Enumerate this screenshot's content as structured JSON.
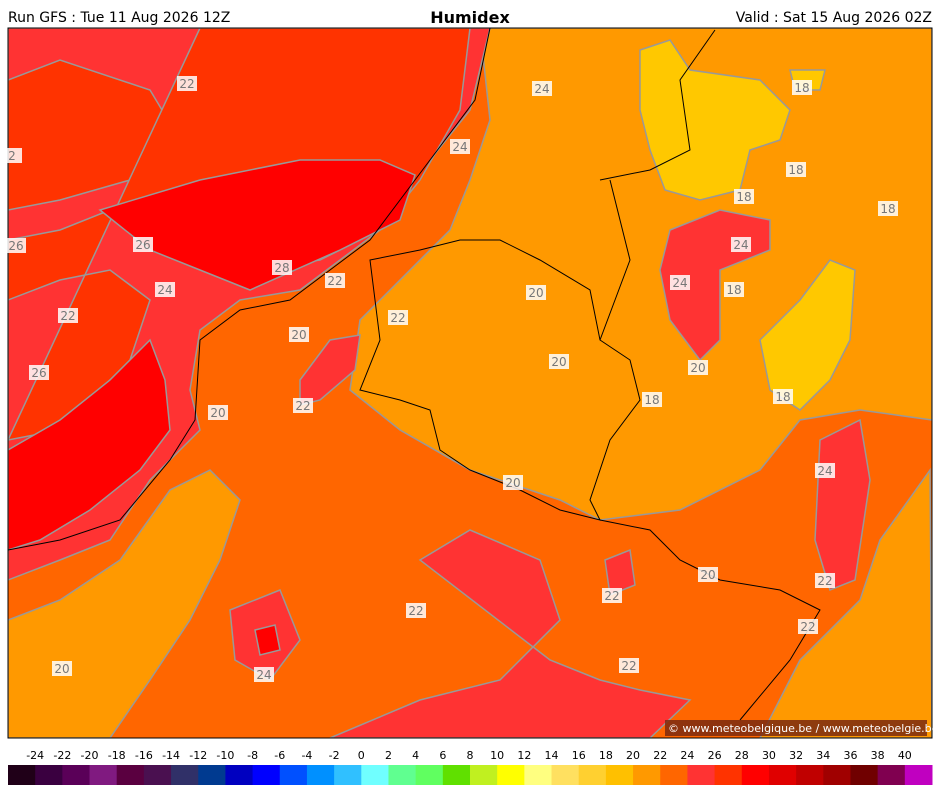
{
  "header": {
    "run": "Run GFS : Tue 11 Aug 2026 12Z",
    "title": "Humidex",
    "valid": "Valid : Sat 15 Aug 2026 02Z"
  },
  "contour_labels": [
    22,
    2,
    24,
    24,
    18,
    18,
    18,
    18,
    26,
    26,
    28,
    22,
    24,
    24,
    24,
    18,
    20,
    22,
    22,
    20,
    20,
    20,
    26,
    18,
    18,
    22,
    20,
    24,
    20,
    20,
    22,
    22,
    22,
    22,
    20,
    22,
    24
  ],
  "copyright": "© www.meteobelgique.be / www.meteobelgie.be",
  "legend": {
    "ticks": [
      -24,
      -22,
      -20,
      -18,
      -16,
      -14,
      -12,
      -10,
      -8,
      -6,
      -4,
      -2,
      0,
      2,
      4,
      6,
      8,
      10,
      12,
      14,
      16,
      18,
      20,
      22,
      24,
      26,
      28,
      30,
      32,
      34,
      36,
      38,
      40
    ],
    "colors": [
      "#200018",
      "#3a0040",
      "#5a0058",
      "#801a80",
      "#5a0040",
      "#4a1050",
      "#303068",
      "#003a90",
      "#0000c0",
      "#0000ff",
      "#0050ff",
      "#0090ff",
      "#30c0ff",
      "#70ffff",
      "#60ff90",
      "#60ff60",
      "#60e000",
      "#c0f020",
      "#ffff00",
      "#ffff80",
      "#ffe060",
      "#ffd030",
      "#ffc000",
      "#ff9900",
      "#ff6600",
      "#ff3333",
      "#ff3300",
      "#ff0000",
      "#e00000",
      "#c00000",
      "#a00000",
      "#700000",
      "#800050",
      "#c000c0"
    ]
  }
}
